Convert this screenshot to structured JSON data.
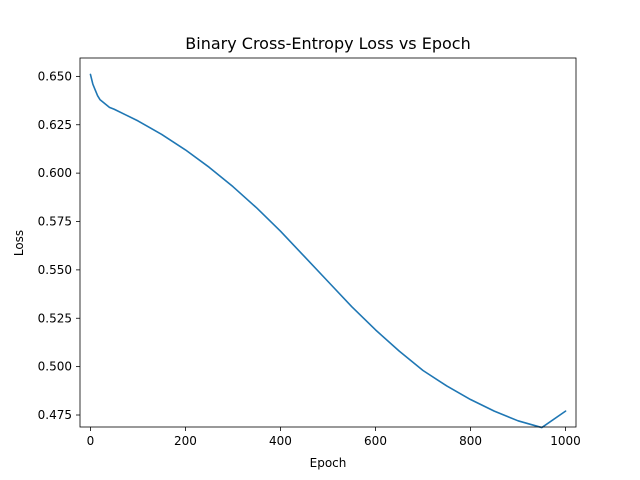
{
  "chart_data": {
    "type": "line",
    "title": "Binary Cross-Entropy Loss vs Epoch",
    "xlabel": "Epoch",
    "ylabel": "Loss",
    "xlim": [
      -22,
      1022
    ],
    "ylim": [
      0.4688,
      0.6595
    ],
    "xticks": [
      0,
      200,
      400,
      600,
      800,
      1000
    ],
    "yticks": [
      0.475,
      0.5,
      0.525,
      0.55,
      0.575,
      0.6,
      0.625,
      0.65
    ],
    "xtick_labels": [
      "0",
      "200",
      "400",
      "600",
      "800",
      "1000"
    ],
    "ytick_labels": [
      "0.475",
      "0.500",
      "0.525",
      "0.550",
      "0.575",
      "0.600",
      "0.625",
      "0.650"
    ],
    "grid": false,
    "legend": "none",
    "series": [
      {
        "color": "#1f77b4",
        "x": [
          0,
          5,
          10,
          15,
          20,
          30,
          40,
          50,
          75,
          100,
          150,
          200,
          250,
          300,
          350,
          400,
          450,
          500,
          550,
          600,
          650,
          700,
          750,
          800,
          850,
          900,
          950,
          1000
        ],
        "y": [
          0.651,
          0.646,
          0.643,
          0.64,
          0.638,
          0.636,
          0.634,
          0.633,
          0.63,
          0.627,
          0.62,
          0.612,
          0.603,
          0.593,
          0.582,
          0.57,
          0.557,
          0.544,
          0.531,
          0.519,
          0.508,
          0.498,
          0.49,
          0.483,
          0.477,
          0.472,
          0.4685,
          0.477
        ]
      }
    ]
  }
}
